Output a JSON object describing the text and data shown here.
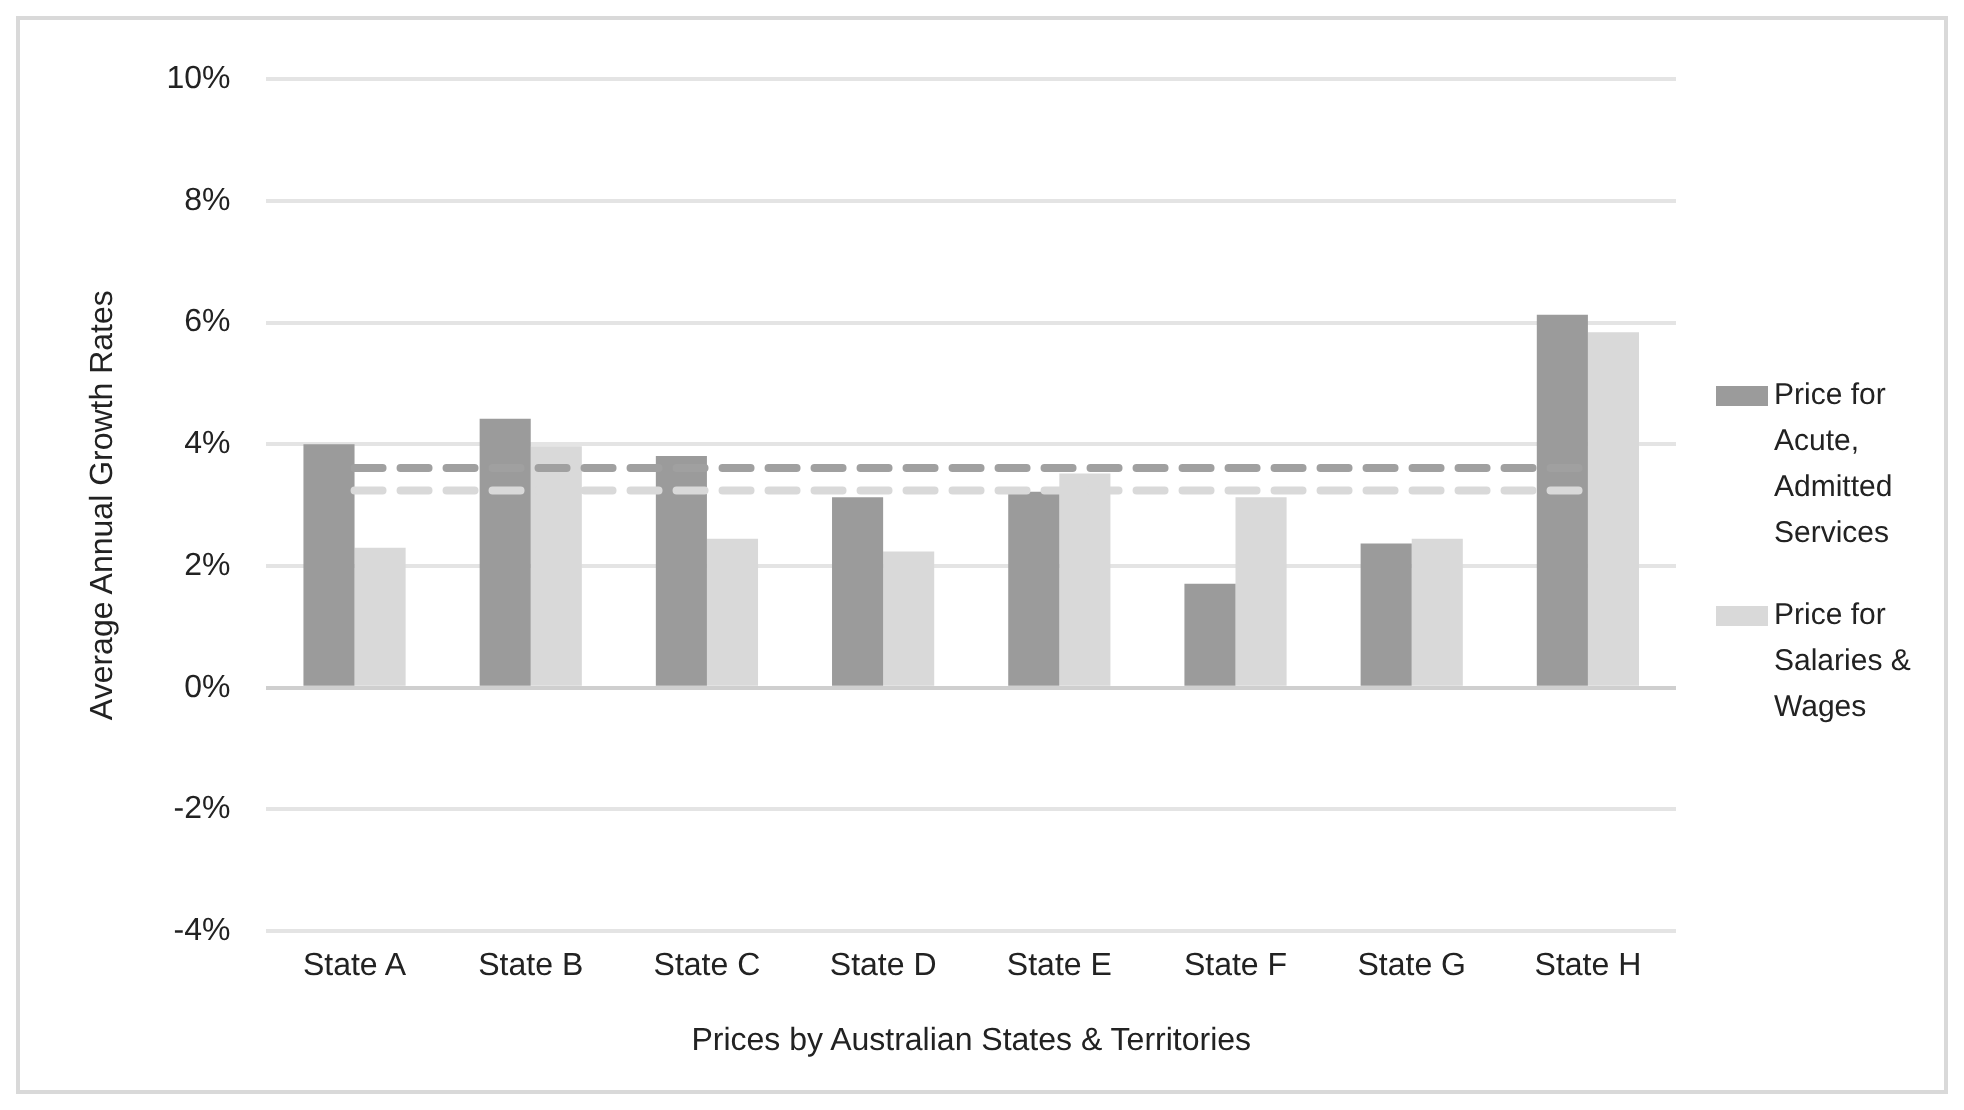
{
  "chart_data": {
    "type": "bar",
    "xlabel": "Prices by Australian States & Territories",
    "ylabel": "Average Annual Growth Rates",
    "categories": [
      "State A",
      "State B",
      "State C",
      "State D",
      "State E",
      "State F",
      "State G",
      "State H"
    ],
    "series": [
      {
        "name": "Price for Acute, Admitted Services",
        "color": "#9b9b9b",
        "values": [
          4.0,
          4.42,
          3.81,
          3.13,
          3.22,
          1.71,
          2.37,
          6.13
        ]
      },
      {
        "name": "Price for Salaries & Wages",
        "color": "#d9d9d9",
        "values": [
          2.3,
          3.97,
          2.45,
          2.24,
          3.52,
          3.13,
          2.45,
          5.84
        ]
      }
    ],
    "ylim": [
      -4,
      10
    ],
    "yticks": [
      {
        "value": -4,
        "label": "-4%"
      },
      {
        "value": -2,
        "label": "-2%"
      },
      {
        "value": 0,
        "label": "0%"
      },
      {
        "value": 2,
        "label": "2%"
      },
      {
        "value": 4,
        "label": "4%"
      },
      {
        "value": 6,
        "label": "6%"
      },
      {
        "value": 8,
        "label": "8%"
      },
      {
        "value": 10,
        "label": "10%"
      }
    ],
    "ref_lines": [
      {
        "axis": "y",
        "value": 3.61,
        "color": "#a0a0a0",
        "line_style": "dashed"
      },
      {
        "axis": "y",
        "value": 3.24,
        "color": "#d9d9d9",
        "line_style": "dashed"
      }
    ],
    "grid": "y",
    "legend": "right"
  }
}
